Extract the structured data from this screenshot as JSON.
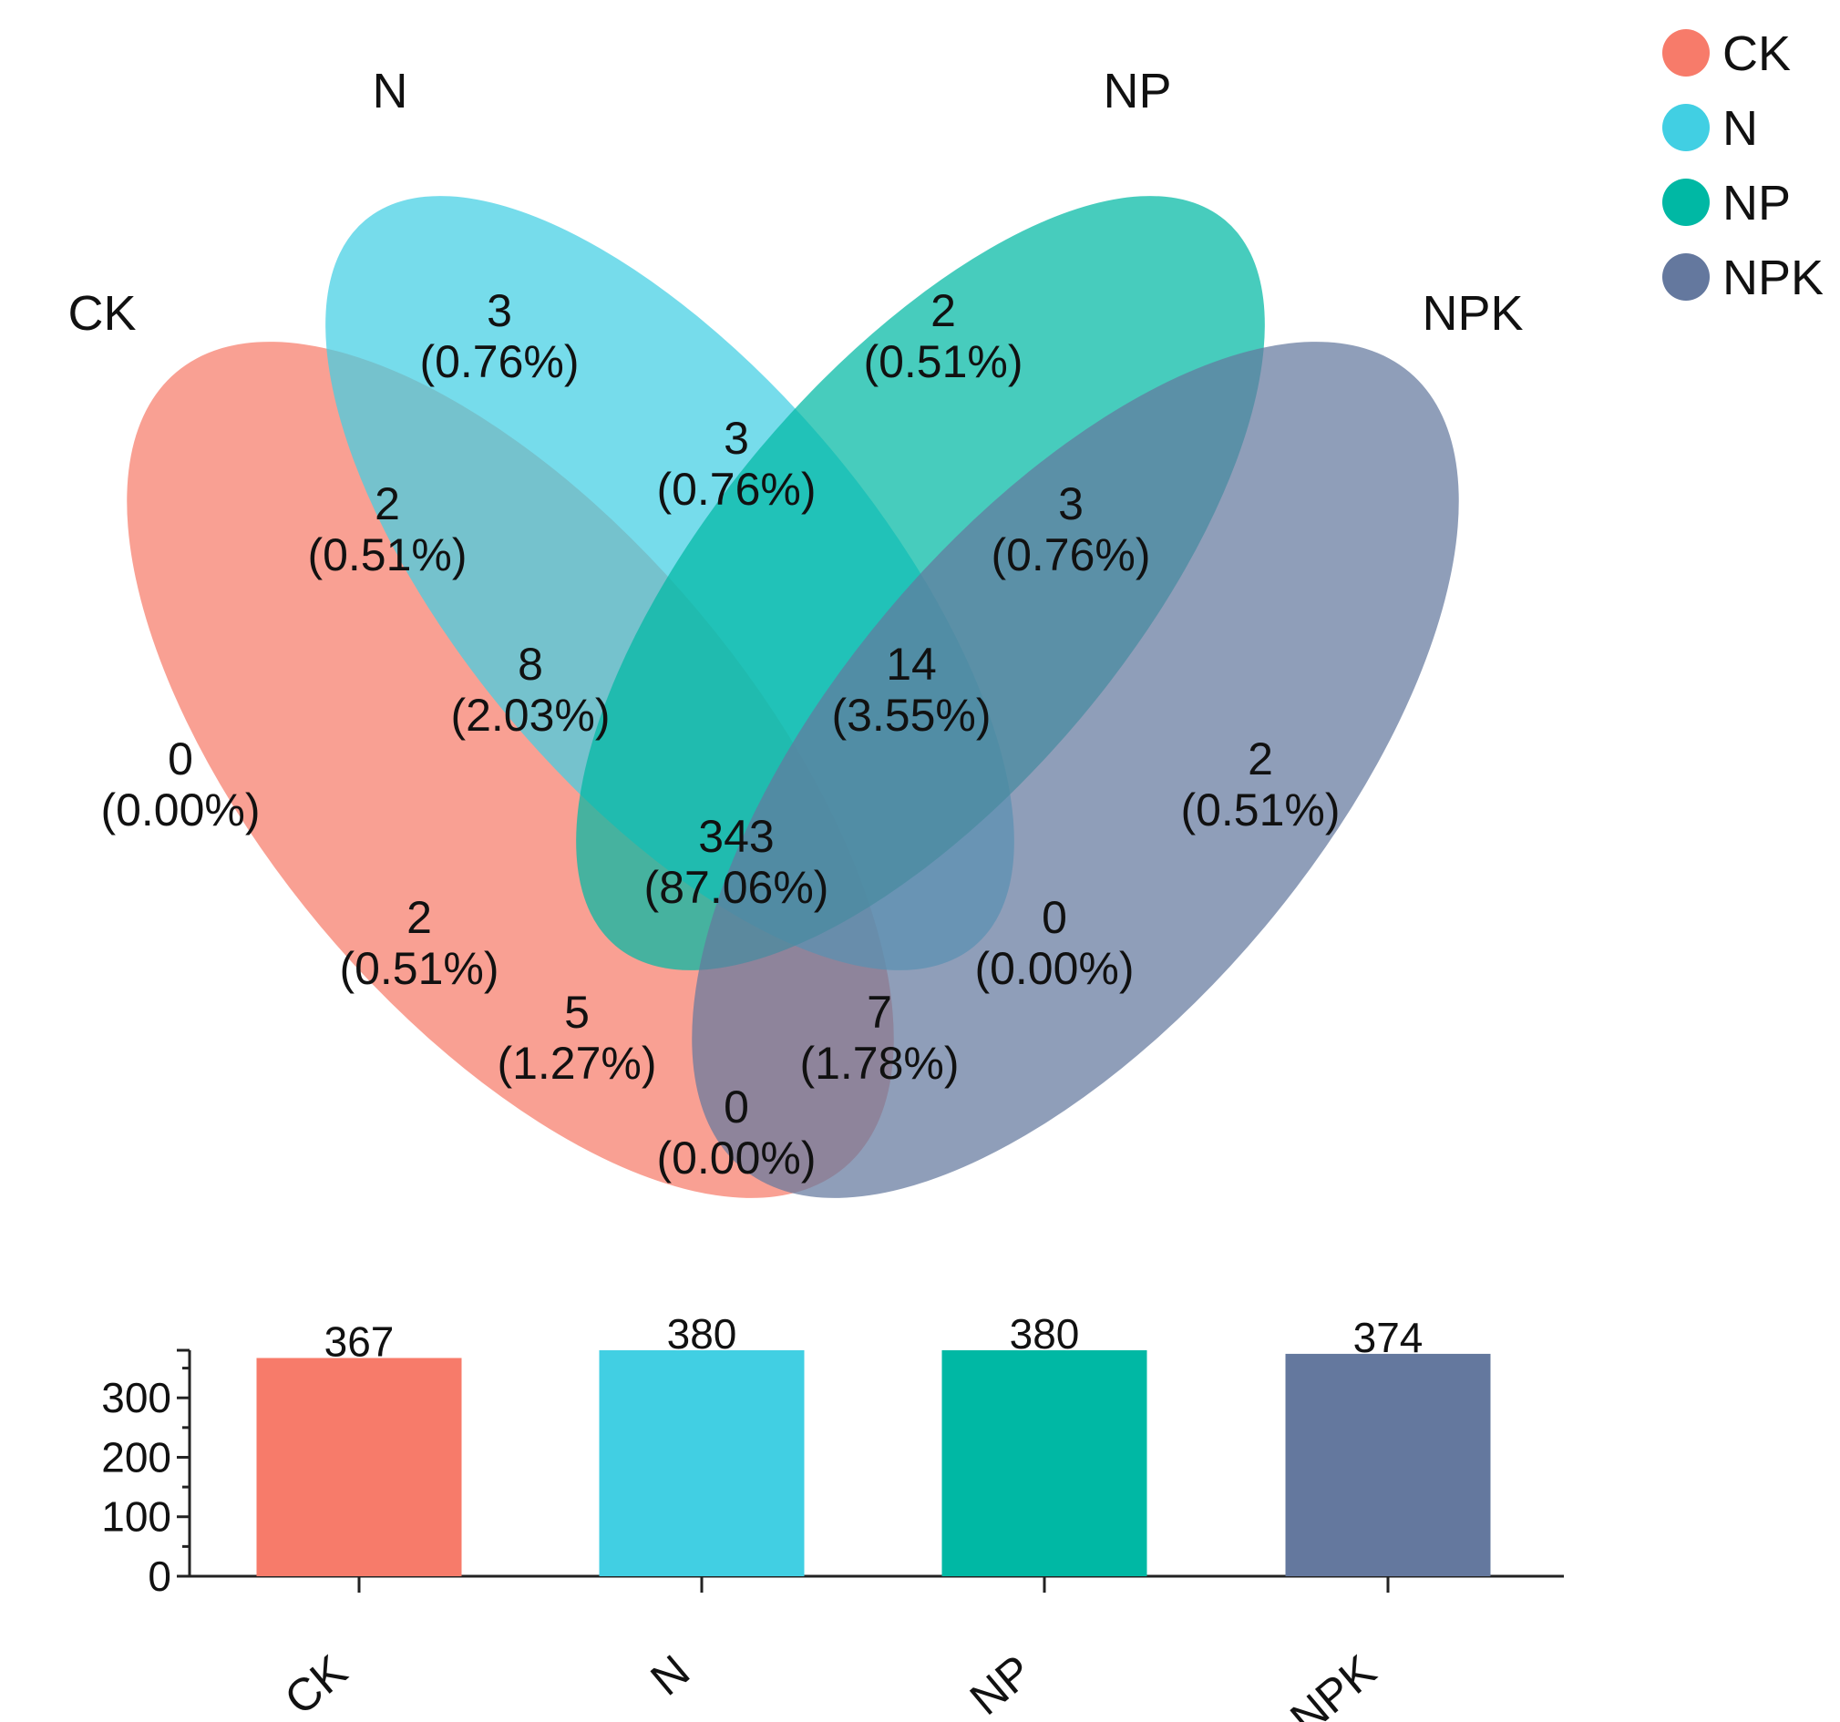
{
  "chart_data": [
    {
      "type": "venn",
      "sets": [
        {
          "name": "CK",
          "color": "#F77B6A",
          "total": 367
        },
        {
          "name": "N",
          "color": "#41CFE3",
          "total": 380
        },
        {
          "name": "NP",
          "color": "#00B8A4",
          "total": 380
        },
        {
          "name": "NPK",
          "color": "#64789E",
          "total": 374
        }
      ],
      "regions": [
        {
          "id": "N_only",
          "sets": [
            "N"
          ],
          "count": "3",
          "percent": "(0.76%)"
        },
        {
          "id": "NP_only",
          "sets": [
            "NP"
          ],
          "count": "2",
          "percent": "(0.51%)"
        },
        {
          "id": "N_NP",
          "sets": [
            "N",
            "NP"
          ],
          "count": "3",
          "percent": "(0.76%)"
        },
        {
          "id": "CK_N",
          "sets": [
            "CK",
            "N"
          ],
          "count": "2",
          "percent": "(0.51%)"
        },
        {
          "id": "NP_NPK",
          "sets": [
            "NP",
            "NPK"
          ],
          "count": "3",
          "percent": "(0.76%)"
        },
        {
          "id": "CK_N_NP",
          "sets": [
            "CK",
            "N",
            "NP"
          ],
          "count": "8",
          "percent": "(2.03%)"
        },
        {
          "id": "N_NP_NPK",
          "sets": [
            "N",
            "NP",
            "NPK"
          ],
          "count": "14",
          "percent": "(3.55%)"
        },
        {
          "id": "CK_only",
          "sets": [
            "CK"
          ],
          "count": "0",
          "percent": "(0.00%)"
        },
        {
          "id": "NPK_only",
          "sets": [
            "NPK"
          ],
          "count": "2",
          "percent": "(0.51%)"
        },
        {
          "id": "all",
          "sets": [
            "CK",
            "N",
            "NP",
            "NPK"
          ],
          "count": "343",
          "percent": "(87.06%)"
        },
        {
          "id": "CK_NP",
          "sets": [
            "CK",
            "NP"
          ],
          "count": "2",
          "percent": "(0.51%)"
        },
        {
          "id": "N_NPK",
          "sets": [
            "N",
            "NPK"
          ],
          "count": "0",
          "percent": "(0.00%)"
        },
        {
          "id": "CK_NP_NPK",
          "sets": [
            "CK",
            "NP",
            "NPK"
          ],
          "count": "5",
          "percent": "(1.27%)"
        },
        {
          "id": "CK_N_NPK",
          "sets": [
            "CK",
            "N",
            "NPK"
          ],
          "count": "7",
          "percent": "(1.78%)"
        },
        {
          "id": "CK_NPK",
          "sets": [
            "CK",
            "NPK"
          ],
          "count": "0",
          "percent": "(0.00%)"
        }
      ],
      "legend": [
        "CK",
        "N",
        "NP",
        "NPK"
      ],
      "legend_position": "top-right"
    },
    {
      "type": "bar",
      "categories": [
        "CK",
        "N",
        "NP",
        "NPK"
      ],
      "values": [
        367,
        380,
        380,
        374
      ],
      "colors": [
        "#F77B6A",
        "#41CFE3",
        "#00B8A4",
        "#64789E"
      ],
      "yticks": [
        0,
        100,
        200,
        300
      ],
      "ylim": [
        0,
        380
      ],
      "title": "",
      "xlabel": "",
      "ylabel": ""
    }
  ]
}
